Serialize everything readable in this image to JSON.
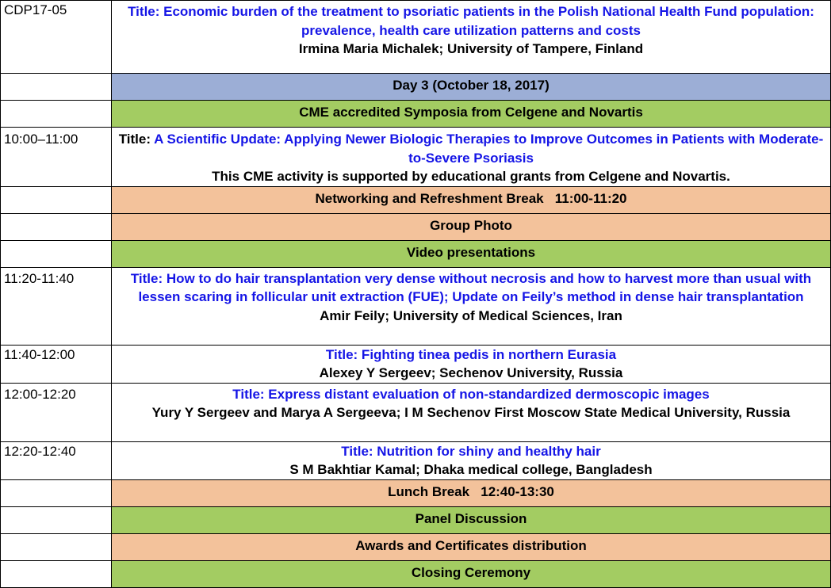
{
  "colors": {
    "day_band": "#9caed6",
    "green_band": "#a3cc62",
    "orange_band": "#f3c29b",
    "title_text": "#1515e6"
  },
  "rows": {
    "cdp": {
      "time": "CDP17-05",
      "title": "Title: Economic burden of the treatment to psoriatic patients in the Polish National Health Fund population: prevalence, health care utilization patterns and costs",
      "author": "Irmina Maria Michalek; University of Tampere, Finland"
    },
    "day3": {
      "label": "Day 3 (October 18, 2017)"
    },
    "cme": {
      "label": "CME accredited Symposia from Celgene and Novartis"
    },
    "session1": {
      "time": "10:00–11:00",
      "title_prefix": "Title: ",
      "title": "A Scientific Update: Applying Newer Biologic Therapies to Improve Outcomes in Patients with Moderate-to-Severe Psoriasis",
      "note": "This CME activity is supported by educational grants from Celgene and Novartis."
    },
    "break1": {
      "label": "Networking and Refreshment Break   11:00-11:20"
    },
    "photo": {
      "label": "Group Photo"
    },
    "video": {
      "label": "Video presentations"
    },
    "talk1": {
      "time": "11:20-11:40",
      "title": "Title: How to do hair transplantation very dense without necrosis and how to harvest more than usual with lessen scaring in follicular unit extraction (FUE); Update on Feily’s method in dense hair transplantation",
      "author": "Amir Feily; University of Medical Sciences, Iran"
    },
    "talk2": {
      "time": "11:40-12:00",
      "title": "Title: Fighting tinea pedis in northern Eurasia",
      "author": "Alexey Y Sergeev; Sechenov University, Russia"
    },
    "talk3": {
      "time": "12:00-12:20",
      "title": "Title: Express distant evaluation of non-standardized dermoscopic images",
      "author": "Yury Y Sergeev and Marya A Sergeeva; I M Sechenov First Moscow State Medical University, Russia"
    },
    "talk4": {
      "time": "12:20-12:40",
      "title": "Title: Nutrition for shiny and healthy hair",
      "author": "S M Bakhtiar Kamal; Dhaka medical college, Bangladesh"
    },
    "lunch": {
      "label": "Lunch Break   12:40-13:30"
    },
    "panel": {
      "label": "Panel Discussion"
    },
    "awards": {
      "label": "Awards and Certificates distribution"
    },
    "closing": {
      "label": "Closing Ceremony"
    }
  }
}
